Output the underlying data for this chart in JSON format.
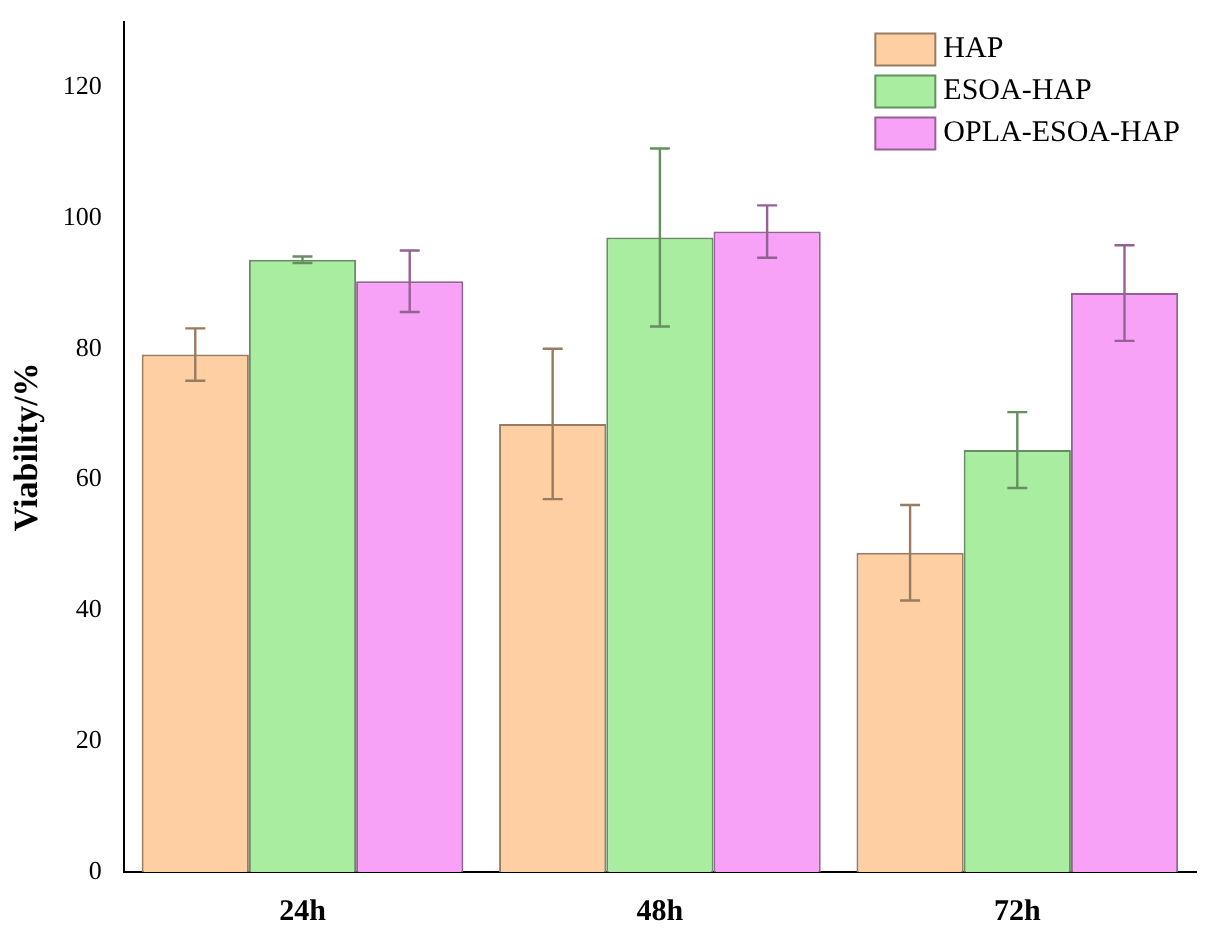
{
  "chart_data": {
    "type": "bar",
    "ylabel": "Viability/%",
    "categories": [
      "24h",
      "48h",
      "72h"
    ],
    "series": [
      {
        "name": "HAP",
        "color": "#fdcfa3",
        "values": [
          79.1,
          68.5,
          48.8
        ],
        "errors": [
          4,
          11.5,
          7.3
        ]
      },
      {
        "name": "ESOA-HAP",
        "color": "#a9eea0",
        "values": [
          93.6,
          97,
          64.5
        ],
        "errors": [
          0.5,
          13.6,
          5.8
        ]
      },
      {
        "name": "OPLA-ESOA-HAP",
        "color": "#f7a2f7",
        "values": [
          90.3,
          97.9,
          88.5
        ],
        "errors": [
          4.7,
          4,
          7.3
        ]
      }
    ],
    "ylim": [
      0,
      130
    ],
    "yticks": [
      0,
      20,
      40,
      60,
      80,
      100,
      120
    ],
    "grid": false,
    "legend": "top right"
  }
}
